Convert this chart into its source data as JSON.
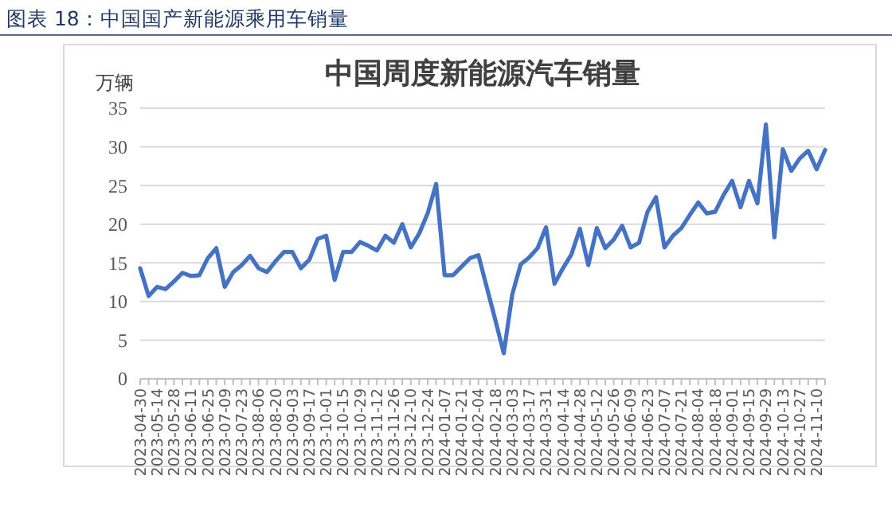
{
  "chart_data": {
    "type": "line",
    "subtitle": "图表 18：中国国产新能源乘用车销量",
    "title": "中国周度新能源汽车销量",
    "ylabel": "万辆",
    "categories": [
      "2023-04-30",
      null,
      "2023-05-14",
      null,
      "2023-05-28",
      null,
      "2023-06-11",
      null,
      "2023-06-25",
      null,
      "2023-07-09",
      null,
      "2023-07-23",
      null,
      "2023-08-06",
      null,
      "2023-08-20",
      null,
      "2023-09-03",
      null,
      "2023-09-17",
      null,
      "2023-10-01",
      null,
      "2023-10-15",
      null,
      "2023-10-29",
      null,
      "2023-11-12",
      null,
      "2023-11-26",
      null,
      "2023-12-10",
      null,
      "2023-12-24",
      null,
      "2024-01-07",
      null,
      "2024-01-21",
      null,
      "2024-02-04",
      null,
      "2024-02-18",
      null,
      "2024-03-03",
      null,
      "2024-03-17",
      null,
      "2024-03-31",
      null,
      "2024-04-14",
      null,
      "2024-04-28",
      null,
      "2024-05-12",
      null,
      "2024-05-26",
      null,
      "2024-06-09",
      null,
      "2024-06-23",
      null,
      "2024-07-07",
      null,
      "2024-07-21",
      null,
      "2024-08-04",
      null,
      "2024-08-18",
      null,
      "2024-09-01",
      null,
      "2024-09-15",
      null,
      "2024-09-29",
      null,
      "2024-10-13",
      null,
      "2024-10-27",
      null,
      "2024-11-10",
      null
    ],
    "series": [
      {
        "color": "#4472c4",
        "values": [
          14.3,
          10.7,
          11.9,
          11.6,
          12.6,
          13.7,
          13.3,
          13.4,
          15.6,
          16.9,
          11.9,
          13.8,
          14.7,
          15.9,
          14.3,
          13.8,
          15.2,
          16.4,
          16.4,
          14.3,
          15.4,
          18.1,
          18.5,
          12.8,
          16.4,
          16.4,
          17.7,
          17.2,
          16.6,
          18.5,
          17.6,
          20.0,
          17.0,
          18.8,
          21.4,
          25.2,
          13.4,
          13.4,
          14.5,
          15.6,
          16.0,
          11.8,
          7.6,
          3.3,
          10.9,
          14.8,
          15.7,
          16.9,
          19.6,
          12.3,
          14.3,
          16.1,
          19.4,
          14.7,
          19.5,
          16.9,
          18.0,
          19.8,
          17.0,
          17.6,
          21.6,
          23.5,
          17.0,
          18.5,
          19.5,
          21.2,
          22.8,
          21.4,
          21.6,
          23.8,
          25.6,
          22.2,
          25.6,
          22.7,
          32.9,
          18.3,
          29.7,
          26.9,
          28.5,
          29.5,
          27.1,
          29.6
        ]
      }
    ],
    "ylim": [
      0,
      35
    ],
    "yticks": [
      0,
      5,
      10,
      15,
      20,
      25,
      30,
      35
    ],
    "grid": "y",
    "marker": "none",
    "line_style": "solid"
  }
}
